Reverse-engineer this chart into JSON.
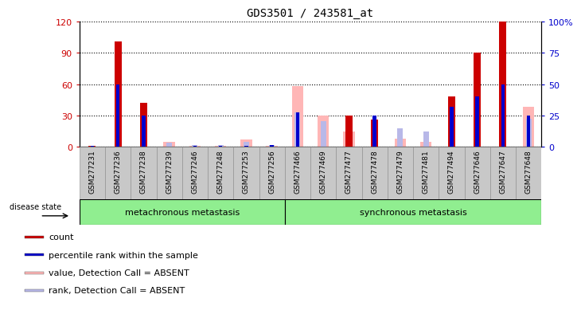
{
  "title": "GDS3501 / 243581_at",
  "samples": [
    "GSM277231",
    "GSM277236",
    "GSM277238",
    "GSM277239",
    "GSM277246",
    "GSM277248",
    "GSM277253",
    "GSM277256",
    "GSM277466",
    "GSM277469",
    "GSM277477",
    "GSM277478",
    "GSM277479",
    "GSM277481",
    "GSM277494",
    "GSM277646",
    "GSM277647",
    "GSM277648"
  ],
  "count_values": [
    1,
    101,
    42,
    0,
    0,
    0,
    0,
    0,
    0,
    0,
    30,
    26,
    0,
    0,
    48,
    90,
    120,
    0
  ],
  "rank_values": [
    1,
    60,
    30,
    0,
    1,
    1,
    1,
    2,
    33,
    0,
    0,
    30,
    0,
    0,
    38,
    48,
    60,
    30
  ],
  "absent_value": [
    0,
    0,
    0,
    5,
    1,
    1,
    7,
    1,
    58,
    30,
    15,
    0,
    8,
    5,
    0,
    0,
    0,
    38
  ],
  "absent_rank": [
    0,
    0,
    0,
    4,
    2,
    2,
    5,
    2,
    33,
    25,
    20,
    0,
    18,
    15,
    0,
    0,
    0,
    27
  ],
  "group1_count": 8,
  "group2_count": 10,
  "group1_label": "metachronous metastasis",
  "group2_label": "synchronous metastasis",
  "ylim_left": [
    0,
    120
  ],
  "ylim_right": [
    0,
    100
  ],
  "yticks_left": [
    0,
    30,
    60,
    90,
    120
  ],
  "yticks_right": [
    0,
    25,
    50,
    75,
    100
  ],
  "color_count": "#cc0000",
  "color_rank": "#0000cc",
  "color_absent_val": "#ffb6b6",
  "color_absent_rank": "#b8b8e8",
  "group_bg": "#90ee90",
  "tick_bg": "#c8c8c8",
  "legend_items": [
    {
      "label": "count",
      "color": "#cc0000"
    },
    {
      "label": "percentile rank within the sample",
      "color": "#0000cc"
    },
    {
      "label": "value, Detection Call = ABSENT",
      "color": "#ffb6b6"
    },
    {
      "label": "rank, Detection Call = ABSENT",
      "color": "#b8b8e8"
    }
  ]
}
